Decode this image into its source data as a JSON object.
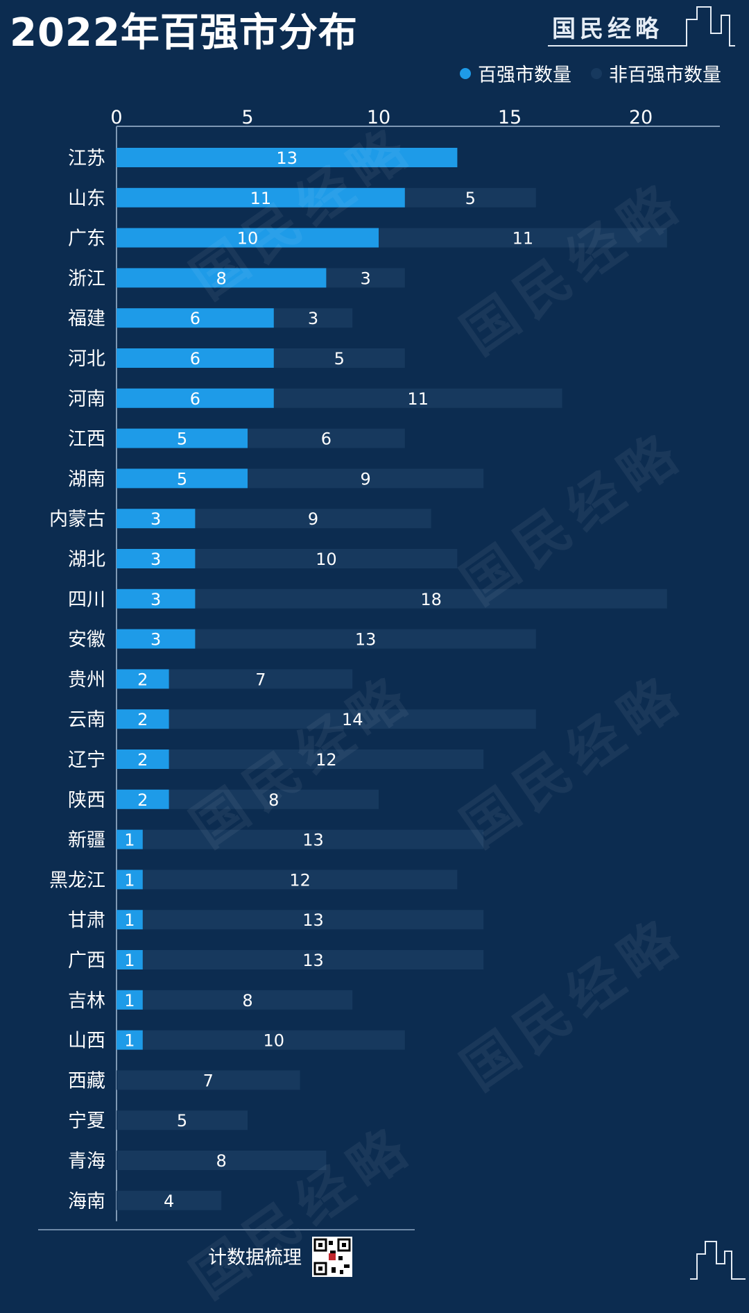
{
  "header": {
    "title": "2022年百强市分布",
    "brand": "国民经略"
  },
  "legend": {
    "items": [
      {
        "label": "百强市数量",
        "color": "#1e9be8"
      },
      {
        "label": "非百强市数量",
        "color": "#17395e"
      }
    ]
  },
  "footer": {
    "source_text": "计数据梳理"
  },
  "watermark_text": "国民经略",
  "chart_data": {
    "type": "bar",
    "orientation": "horizontal",
    "stacked": true,
    "title": "2022年百强市分布",
    "xlim": [
      0,
      23
    ],
    "xticks": [
      0,
      5,
      10,
      15,
      20
    ],
    "categories": [
      "江苏",
      "山东",
      "广东",
      "浙江",
      "福建",
      "河北",
      "河南",
      "江西",
      "湖南",
      "内蒙古",
      "湖北",
      "四川",
      "安徽",
      "贵州",
      "云南",
      "辽宁",
      "陕西",
      "新疆",
      "黑龙江",
      "甘肃",
      "广西",
      "吉林",
      "山西",
      "西藏",
      "宁夏",
      "青海",
      "海南"
    ],
    "series": [
      {
        "name": "百强市数量",
        "color": "#1e9be8",
        "values": [
          13,
          11,
          10,
          8,
          6,
          6,
          6,
          5,
          5,
          3,
          3,
          3,
          3,
          2,
          2,
          2,
          2,
          1,
          1,
          1,
          1,
          1,
          1,
          0,
          0,
          0,
          0
        ]
      },
      {
        "name": "非百强市数量",
        "color": "#17395e",
        "values": [
          0,
          5,
          11,
          3,
          3,
          5,
          11,
          6,
          9,
          9,
          10,
          18,
          13,
          7,
          14,
          12,
          8,
          13,
          12,
          13,
          13,
          8,
          10,
          7,
          5,
          8,
          4
        ]
      }
    ],
    "grid": false,
    "legend_position": "top-right"
  }
}
